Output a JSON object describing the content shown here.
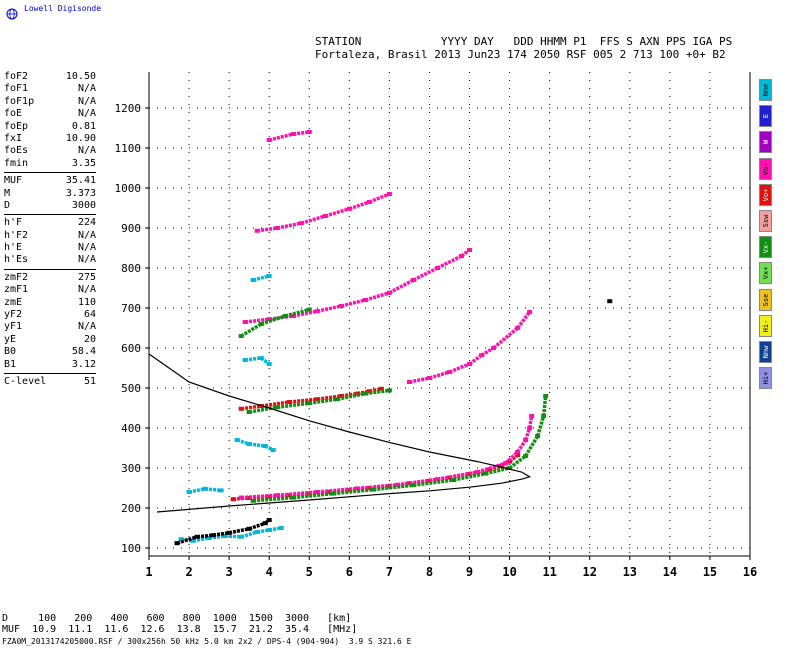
{
  "brand": "Lowell Digisonde",
  "header": {
    "line1": "STATION            YYYY DAY   DDD HHMM P1  FFS S AXN PPS IGA PS",
    "line2": "Fortaleza, Brasil 2013 Jun23 174 2050 RSF 005 2 713 100 +0+ B2"
  },
  "params": [
    {
      "k": "foF2",
      "v": "10.50"
    },
    {
      "k": "foF1",
      "v": "N/A"
    },
    {
      "k": "foF1p",
      "v": "N/A"
    },
    {
      "k": "foE",
      "v": "N/A"
    },
    {
      "k": "foEp",
      "v": "0.81"
    },
    {
      "k": "fxI",
      "v": "10.90"
    },
    {
      "k": "foEs",
      "v": "N/A"
    },
    {
      "k": "fmin",
      "v": "3.35"
    },
    {
      "k": "MUF",
      "v": "35.41",
      "sep": true
    },
    {
      "k": "M",
      "v": "3.373"
    },
    {
      "k": "D",
      "v": "3000"
    },
    {
      "k": "h'F",
      "v": "224",
      "sep": true
    },
    {
      "k": "h'F2",
      "v": "N/A"
    },
    {
      "k": "h'E",
      "v": "N/A"
    },
    {
      "k": "h'Es",
      "v": "N/A"
    },
    {
      "k": "zmF2",
      "v": "275",
      "sep": true
    },
    {
      "k": "zmF1",
      "v": "N/A"
    },
    {
      "k": "zmE",
      "v": "110"
    },
    {
      "k": "yF2",
      "v": "64"
    },
    {
      "k": "yF1",
      "v": "N/A"
    },
    {
      "k": "yE",
      "v": "20"
    },
    {
      "k": "B0",
      "v": "58.4"
    },
    {
      "k": "B1",
      "v": "3.12"
    },
    {
      "k": "C-level",
      "v": "51",
      "sep": true
    }
  ],
  "legend": [
    {
      "label": "Nne",
      "color": "#00b8d8"
    },
    {
      "label": "E",
      "color": "#2020d0"
    },
    {
      "label": "W",
      "color": "#a000c0"
    },
    {
      "label": "Vo-",
      "color": "#ff10b0"
    },
    {
      "label": "Vo+",
      "color": "#e01010"
    },
    {
      "label": "Ssw",
      "color": "#f4a0a0"
    },
    {
      "label": "Vx-",
      "color": "#109010"
    },
    {
      "label": "Vx+",
      "color": "#70e050"
    },
    {
      "label": "Sse",
      "color": "#f0c020"
    },
    {
      "label": "Hi-",
      "color": "#f0f020"
    },
    {
      "label": "Nnw",
      "color": "#104090"
    },
    {
      "label": "Hi+",
      "color": "#9090e0"
    }
  ],
  "bottom": {
    "line1": "D     100   200   400   600   800  1000  1500  3000   [km]",
    "line2": "MUF  10.9  11.1  11.6  12.6  13.8  15.7  21.2  35.4   [MHz]",
    "line3": "FZA0M_2013174205000.RSF / 300x256h 50 kHz 5.0 km 2x2 / DPS-4 (904-904)  3.9 S 321.6 E"
  },
  "chart_data": {
    "type": "scatter",
    "title": "",
    "xlabel": "",
    "ylabel": "",
    "xlim": [
      1,
      16
    ],
    "ylim": [
      80,
      1290
    ],
    "x_ticks": [
      1,
      2,
      3,
      4,
      5,
      6,
      7,
      8,
      9,
      10,
      11,
      12,
      13,
      14,
      15,
      16
    ],
    "y_ticks": [
      100,
      200,
      300,
      400,
      500,
      600,
      700,
      800,
      900,
      1000,
      1100,
      1200
    ],
    "grid": true,
    "series": [
      {
        "color": "#e01010",
        "points": [
          [
            3.1,
            222
          ],
          [
            3.5,
            225
          ],
          [
            4.0,
            228
          ],
          [
            4.5,
            232
          ],
          [
            5.0,
            236
          ],
          [
            5.5,
            240
          ],
          [
            6.0,
            245
          ],
          [
            6.5,
            250
          ],
          [
            7.0,
            255
          ],
          [
            7.5,
            262
          ],
          [
            8.0,
            268
          ],
          [
            8.5,
            276
          ],
          [
            9.0,
            285
          ],
          [
            9.5,
            296
          ],
          [
            9.8,
            305
          ],
          [
            10.0,
            316
          ],
          [
            10.2,
            332
          ]
        ]
      },
      {
        "color": "#ff10b0",
        "points": [
          [
            3.3,
            226
          ],
          [
            4.2,
            232
          ],
          [
            5.2,
            240
          ],
          [
            6.2,
            249
          ],
          [
            7.2,
            258
          ],
          [
            8.2,
            272
          ],
          [
            9.2,
            290
          ],
          [
            9.9,
            312
          ],
          [
            10.2,
            340
          ],
          [
            10.4,
            370
          ],
          [
            10.5,
            400
          ],
          [
            10.55,
            430
          ]
        ]
      },
      {
        "color": "#109010",
        "points": [
          [
            3.6,
            218
          ],
          [
            4.6,
            226
          ],
          [
            5.6,
            236
          ],
          [
            6.6,
            246
          ],
          [
            7.6,
            257
          ],
          [
            8.6,
            270
          ],
          [
            9.4,
            286
          ],
          [
            10.0,
            300
          ],
          [
            10.4,
            330
          ],
          [
            10.7,
            380
          ],
          [
            10.85,
            430
          ],
          [
            10.9,
            480
          ]
        ]
      },
      {
        "color": "#e01010",
        "points": [
          [
            3.3,
            448
          ],
          [
            3.8,
            455
          ],
          [
            4.5,
            465
          ],
          [
            5.2,
            472
          ],
          [
            5.8,
            480
          ],
          [
            6.2,
            486
          ],
          [
            6.5,
            492
          ],
          [
            6.8,
            498
          ]
        ]
      },
      {
        "color": "#109010",
        "points": [
          [
            3.5,
            440
          ],
          [
            4.2,
            452
          ],
          [
            5.0,
            462
          ],
          [
            5.7,
            472
          ],
          [
            6.4,
            486
          ],
          [
            7.0,
            494
          ]
        ]
      },
      {
        "color": "#ff10b0",
        "points": [
          [
            7.5,
            515
          ],
          [
            8.0,
            525
          ],
          [
            8.5,
            540
          ],
          [
            9.0,
            560
          ],
          [
            9.3,
            582
          ],
          [
            9.6,
            600
          ],
          [
            10.2,
            650
          ],
          [
            10.5,
            690
          ]
        ]
      },
      {
        "color": "#ff10b0",
        "points": [
          [
            3.4,
            665
          ],
          [
            4.0,
            672
          ],
          [
            4.6,
            680
          ],
          [
            5.2,
            692
          ],
          [
            5.8,
            705
          ],
          [
            6.4,
            720
          ],
          [
            7.0,
            738
          ],
          [
            7.6,
            770
          ],
          [
            8.2,
            800
          ],
          [
            8.8,
            830
          ],
          [
            9.0,
            845
          ]
        ]
      },
      {
        "color": "#109010",
        "points": [
          [
            3.3,
            630
          ],
          [
            3.8,
            660
          ],
          [
            4.4,
            680
          ],
          [
            5.0,
            696
          ]
        ]
      },
      {
        "color": "#ff10b0",
        "points": [
          [
            3.7,
            893
          ],
          [
            4.2,
            900
          ],
          [
            4.8,
            912
          ],
          [
            5.4,
            930
          ],
          [
            6.0,
            948
          ],
          [
            6.5,
            965
          ],
          [
            7.0,
            985
          ]
        ]
      },
      {
        "color": "#ff10b0",
        "points": [
          [
            4.0,
            1120
          ],
          [
            4.6,
            1135
          ],
          [
            5.0,
            1140
          ]
        ]
      },
      {
        "color": "#00b8d8",
        "points": [
          [
            1.8,
            122
          ],
          [
            2.1,
            118
          ],
          [
            2.5,
            125
          ],
          [
            2.9,
            130
          ],
          [
            3.3,
            128
          ],
          [
            3.7,
            140
          ],
          [
            4.0,
            145
          ],
          [
            4.3,
            150
          ],
          [
            3.2,
            370
          ],
          [
            3.5,
            360
          ],
          [
            3.9,
            355
          ],
          [
            4.1,
            345
          ],
          [
            3.4,
            570
          ],
          [
            3.8,
            575
          ],
          [
            4.0,
            560
          ],
          [
            3.6,
            770
          ],
          [
            4.0,
            780
          ],
          [
            2.0,
            240
          ],
          [
            2.4,
            248
          ],
          [
            2.8,
            244
          ]
        ]
      },
      {
        "color": "#000000",
        "points": [
          [
            1.7,
            112
          ],
          [
            2.2,
            128
          ],
          [
            2.6,
            132
          ],
          [
            3.0,
            138
          ],
          [
            3.5,
            148
          ],
          [
            3.9,
            162
          ],
          [
            4.0,
            170
          ],
          [
            12.5,
            717
          ]
        ]
      }
    ],
    "profile": {
      "color": "#000000",
      "points": [
        [
          1.2,
          190
        ],
        [
          3.0,
          205
        ],
        [
          5.0,
          220
        ],
        [
          7.0,
          236
        ],
        [
          8.0,
          243
        ],
        [
          9.0,
          252
        ],
        [
          9.8,
          262
        ],
        [
          10.3,
          272
        ],
        [
          10.5,
          278
        ],
        [
          10.3,
          290
        ],
        [
          9.8,
          302
        ],
        [
          9.2,
          316
        ],
        [
          8.0,
          340
        ],
        [
          7.0,
          364
        ],
        [
          6.0,
          390
        ],
        [
          5.0,
          418
        ],
        [
          4.0,
          450
        ],
        [
          3.0,
          480
        ],
        [
          2.0,
          515
        ],
        [
          1.5,
          550
        ],
        [
          1.0,
          585
        ]
      ]
    }
  }
}
